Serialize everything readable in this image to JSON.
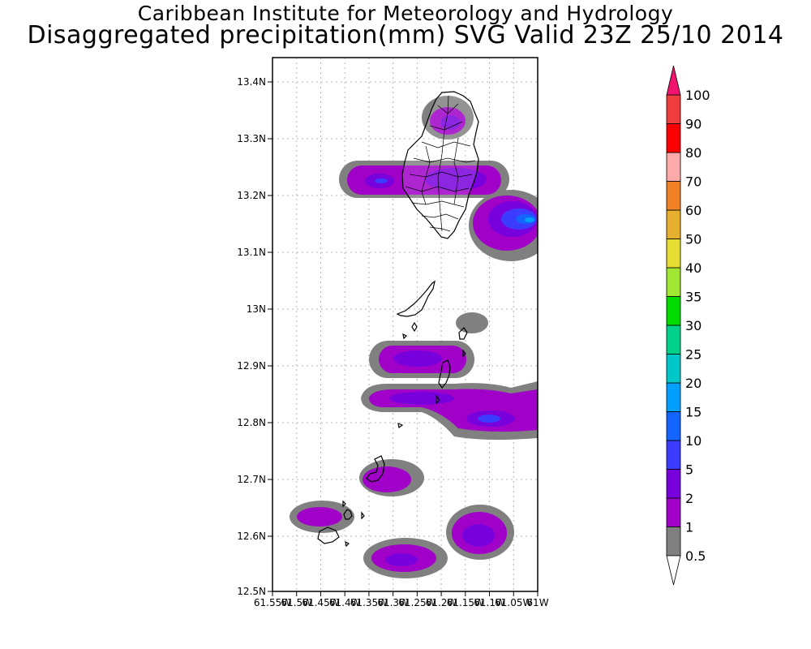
{
  "title": "Caribbean Institute for Meteorology and Hydrology",
  "subtitle": "Disaggregated precipitation(mm) SVG Valid 23Z 25/10 2014",
  "map": {
    "lat_range": [
      12.5,
      13.44
    ],
    "lon_range": [
      -61.55,
      -61.0
    ],
    "y_tick_labels": [
      "13.4N",
      "13.3N",
      "13.2N",
      "13.1N",
      "13N",
      "12.9N",
      "12.8N",
      "12.7N",
      "12.6N",
      "12.5N"
    ],
    "x_tick_labels": [
      "61.55W",
      "61.5W",
      "61.45W",
      "61.4W",
      "61.35W",
      "61.3W",
      "61.25W",
      "61.2W",
      "61.15W",
      "61.1W",
      "61.05W",
      "61W"
    ],
    "grid": true,
    "islands": [
      "St. Vincent",
      "Bequia",
      "Mustique",
      "Canouan",
      "Mayreau",
      "Union Island",
      "Carriacou"
    ]
  },
  "colorbar": {
    "unit": "mm",
    "levels": [
      "0.5",
      "1",
      "2",
      "5",
      "10",
      "15",
      "20",
      "25",
      "30",
      "35",
      "40",
      "50",
      "60",
      "70",
      "80",
      "90",
      "100"
    ],
    "colors": [
      "#808080",
      "#a000c8",
      "#7800dc",
      "#3c3cff",
      "#1464ff",
      "#00a0ff",
      "#00c8c8",
      "#00d28c",
      "#00dc00",
      "#a0e632",
      "#e6dc32",
      "#e6af2d",
      "#f08228",
      "#ffaaaa",
      "#fa0000",
      "#f03c3c",
      "#f0146e"
    ]
  }
}
